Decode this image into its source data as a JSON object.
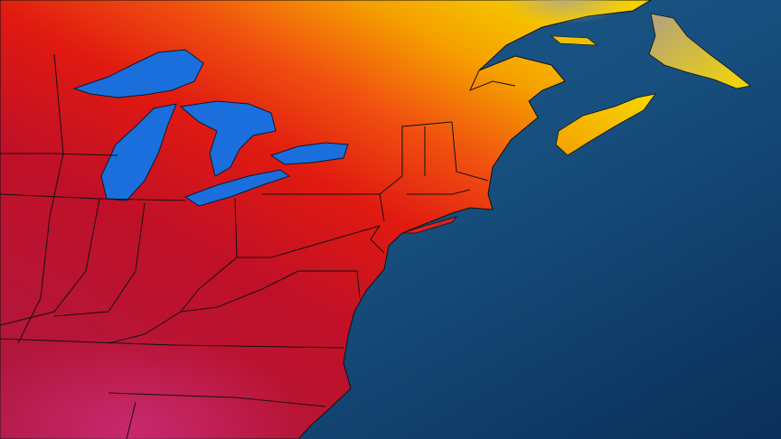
{
  "map": {
    "colors": {
      "ocean_dark": "#0b2f5a",
      "ocean_light": "#1d5f92",
      "lake": "#1a6fdc",
      "heat_magenta": "#c0245a",
      "heat_crimson": "#b01030",
      "heat_red": "#e01a10",
      "heat_orange": "#f06010",
      "heat_yellow": "#f5c800",
      "cool_tan": "#b8a878",
      "border": "#111111"
    }
  }
}
